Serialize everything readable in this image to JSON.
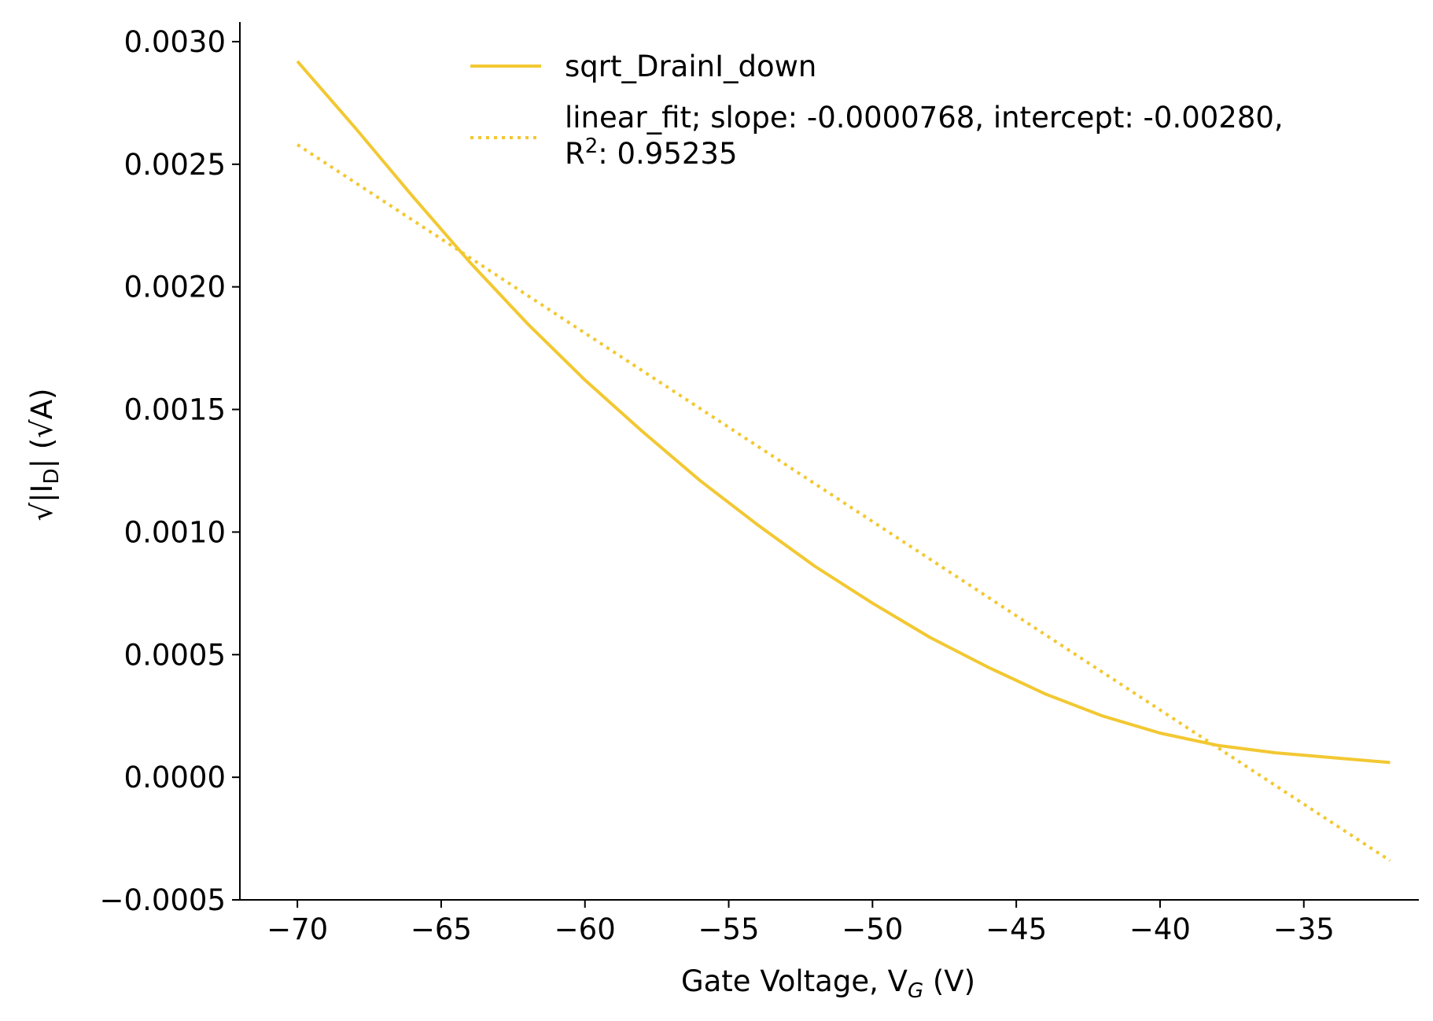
{
  "chart_data": {
    "type": "line",
    "xlabel": {
      "main": "Gate Voltage, V",
      "sub": "G",
      "suffix": " (V)"
    },
    "ylabel": {
      "main": "√|I",
      "sub": "D",
      "suffix": "| (√A)"
    },
    "xlim": [
      -72,
      -31
    ],
    "ylim": [
      -0.0005,
      0.00308
    ],
    "xticks": [
      -70,
      -65,
      -60,
      -55,
      -50,
      -45,
      -40,
      -35
    ],
    "xtick_labels": [
      "−70",
      "−65",
      "−60",
      "−55",
      "−50",
      "−45",
      "−40",
      "−35"
    ],
    "yticks": [
      -0.0005,
      0.0,
      0.0005,
      0.001,
      0.0015,
      0.002,
      0.0025,
      0.003
    ],
    "ytick_labels": [
      "−0.0005",
      "0.0000",
      "0.0005",
      "0.0010",
      "0.0015",
      "0.0020",
      "0.0025",
      "0.0030"
    ],
    "grid": false,
    "legend_position": "top-center",
    "series": [
      {
        "name": "sqrt_DrainI_down",
        "style": "solid",
        "color": "#f2c832",
        "x": [
          -70,
          -68,
          -66,
          -64,
          -62,
          -60,
          -58,
          -56,
          -54,
          -52,
          -50,
          -48,
          -46,
          -44,
          -42,
          -40,
          -38,
          -36,
          -34,
          -32
        ],
        "y": [
          0.00292,
          0.00265,
          0.00237,
          0.0021,
          0.00185,
          0.00162,
          0.00141,
          0.00121,
          0.00103,
          0.00086,
          0.00071,
          0.00057,
          0.00045,
          0.00034,
          0.00025,
          0.00018,
          0.00013,
          0.0001,
          8e-05,
          6e-05
        ]
      },
      {
        "name_lines": [
          "linear_fit; slope: -0.0000768, intercept: -0.00280,",
          "R",
          "2",
          ": 0.95235"
        ],
        "style": "dotted",
        "color": "#f2c832",
        "x": [
          -70,
          -32
        ],
        "y": [
          0.00258,
          -0.00034
        ]
      }
    ]
  }
}
